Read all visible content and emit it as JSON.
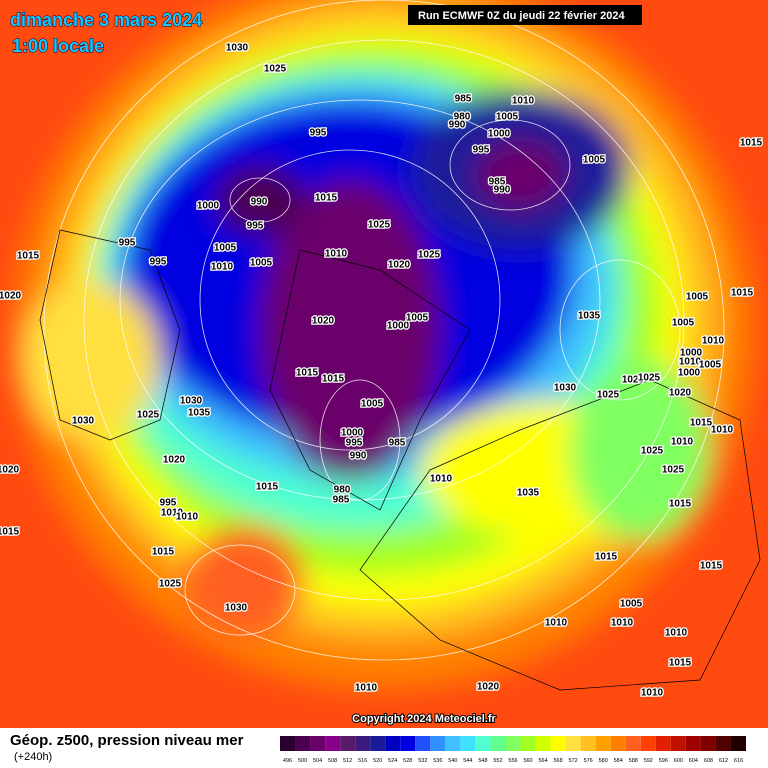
{
  "header": {
    "date": "dimanche 3 mars 2024",
    "time": "1:00 locale",
    "run": "Run ECMWF 0Z du jeudi 22 février 2024"
  },
  "isobar_labels": [
    "1030",
    "1025",
    "995",
    "990",
    "1000",
    "995",
    "1015",
    "995",
    "995",
    "1005",
    "1010",
    "1005",
    "1010",
    "1025",
    "1020",
    "1025",
    "1015",
    "1020",
    "1020",
    "1000",
    "1005",
    "1015",
    "1015",
    "1005",
    "1030",
    "1035",
    "1025",
    "1030",
    "1000",
    "995",
    "985",
    "990",
    "1020",
    "1010",
    "1015",
    "980",
    "985",
    "995",
    "1010",
    "1010",
    "1020",
    "1015",
    "1015",
    "1025",
    "1030",
    "985",
    "1010",
    "980",
    "1005",
    "990",
    "1000",
    "995",
    "985",
    "990",
    "1005",
    "1015",
    "1035",
    "1005",
    "1015",
    "1005",
    "1010",
    "1000",
    "1010",
    "1005",
    "1000",
    "1025",
    "1025",
    "1030",
    "1025",
    "1020",
    "1015",
    "1010",
    "1010",
    "1025",
    "1025",
    "1015",
    "1035",
    "1015",
    "1015",
    "1005",
    "1010",
    "1010",
    "1010",
    "1015",
    "1010",
    "1020",
    "1010"
  ],
  "copyright": "Copyright 2024 Meteociel.fr",
  "legend": {
    "title": "Géop. z500, pression niveau mer",
    "subtitle": "(+240h)",
    "scale": {
      "values": [
        496,
        500,
        504,
        508,
        512,
        516,
        520,
        524,
        528,
        532,
        536,
        540,
        544,
        548,
        552,
        556,
        560,
        564,
        568,
        572,
        576,
        580,
        584,
        588,
        592,
        596,
        600,
        604,
        608,
        612,
        616
      ],
      "colors": [
        "#2a0030",
        "#4b0050",
        "#6a006a",
        "#8a008a",
        "#5a1a6a",
        "#3a1a7a",
        "#1a1a9a",
        "#0000c0",
        "#0000e0",
        "#2050ff",
        "#3090ff",
        "#40c0ff",
        "#40e0ff",
        "#50ffd0",
        "#60ff90",
        "#80ff60",
        "#a0ff20",
        "#d0ff00",
        "#ffff00",
        "#ffe040",
        "#ffc020",
        "#ffa000",
        "#ff8000",
        "#ff6020",
        "#ff4000",
        "#e02000",
        "#c01000",
        "#a00000",
        "#800000",
        "#500000",
        "#200000"
      ]
    }
  }
}
